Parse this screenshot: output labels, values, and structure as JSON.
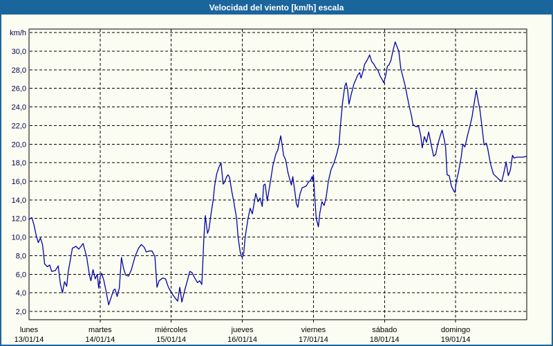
{
  "window": {
    "title": "Velocidad del viento [km/h] escala"
  },
  "colors": {
    "frame_border": "#1B659D",
    "titlebar_bg": "#1B659D",
    "title_text": "#FFFFFF",
    "background": "#FBFDF2",
    "series_line": "#0000A8",
    "grid": "#000000",
    "axis": "#000000",
    "y_label_text": "#00004E",
    "x_label_text": "#000000"
  },
  "chart_data": {
    "type": "line",
    "title": "Velocidad del viento [km/h] escala",
    "y_unit_label": "km/h",
    "ylim": [
      2,
      32
    ],
    "xlim_days": [
      0,
      7
    ],
    "grid": "dashed, horizontal every 2 km/h and vertical at day boundaries",
    "legend": "none",
    "y_ticks": [
      {
        "v": 30,
        "label": "30,0"
      },
      {
        "v": 28,
        "label": "28,0"
      },
      {
        "v": 26,
        "label": "26,0"
      },
      {
        "v": 24,
        "label": "24,0"
      },
      {
        "v": 22,
        "label": "22,0"
      },
      {
        "v": 20,
        "label": "20,0"
      },
      {
        "v": 18,
        "label": "18,0"
      },
      {
        "v": 16,
        "label": "16,0"
      },
      {
        "v": 14,
        "label": "14,0"
      },
      {
        "v": 12,
        "label": "12,0"
      },
      {
        "v": 10,
        "label": "10,0"
      },
      {
        "v": 8,
        "label": "8,0"
      },
      {
        "v": 6,
        "label": "6,0"
      },
      {
        "v": 4,
        "label": "4,0"
      },
      {
        "v": 2,
        "label": "2,0"
      }
    ],
    "x_days": [
      {
        "name": "lunes",
        "date": "13/01/14"
      },
      {
        "name": "martes",
        "date": "14/01/14"
      },
      {
        "name": "miércoles",
        "date": "15/01/14"
      },
      {
        "name": "jueves",
        "date": "16/01/14"
      },
      {
        "name": "viernes",
        "date": "17/01/14"
      },
      {
        "name": "sábado",
        "date": "18/01/14"
      },
      {
        "name": "domingo",
        "date": "19/01/14"
      }
    ],
    "series": [
      {
        "name": "velocidad del viento",
        "unit": "km/h",
        "color": "#0000A8",
        "points": [
          [
            0.0,
            11.9
          ],
          [
            0.04,
            12.1
          ],
          [
            0.07,
            11.3
          ],
          [
            0.1,
            10.2
          ],
          [
            0.13,
            9.4
          ],
          [
            0.16,
            9.9
          ],
          [
            0.19,
            9.2
          ],
          [
            0.22,
            7.1
          ],
          [
            0.26,
            6.8
          ],
          [
            0.29,
            7.0
          ],
          [
            0.32,
            6.3
          ],
          [
            0.37,
            6.4
          ],
          [
            0.41,
            6.9
          ],
          [
            0.44,
            5.0
          ],
          [
            0.47,
            4.0
          ],
          [
            0.5,
            5.2
          ],
          [
            0.53,
            4.7
          ],
          [
            0.55,
            6.2
          ],
          [
            0.61,
            8.8
          ],
          [
            0.66,
            9.0
          ],
          [
            0.7,
            8.7
          ],
          [
            0.76,
            9.3
          ],
          [
            0.81,
            7.9
          ],
          [
            0.85,
            5.9
          ],
          [
            0.87,
            5.3
          ],
          [
            0.9,
            6.5
          ],
          [
            0.93,
            5.5
          ],
          [
            0.96,
            6.0
          ],
          [
            0.98,
            4.5
          ],
          [
            1.0,
            5.7
          ],
          [
            1.02,
            6.1
          ],
          [
            1.05,
            5.4
          ],
          [
            1.08,
            4.3
          ],
          [
            1.12,
            2.7
          ],
          [
            1.15,
            3.4
          ],
          [
            1.19,
            4.3
          ],
          [
            1.21,
            4.4
          ],
          [
            1.24,
            3.6
          ],
          [
            1.27,
            4.5
          ],
          [
            1.3,
            7.8
          ],
          [
            1.33,
            6.6
          ],
          [
            1.36,
            5.9
          ],
          [
            1.4,
            5.8
          ],
          [
            1.44,
            6.5
          ],
          [
            1.49,
            7.9
          ],
          [
            1.54,
            8.8
          ],
          [
            1.58,
            9.2
          ],
          [
            1.62,
            8.9
          ],
          [
            1.65,
            8.4
          ],
          [
            1.69,
            8.5
          ],
          [
            1.73,
            8.5
          ],
          [
            1.77,
            7.9
          ],
          [
            1.8,
            4.6
          ],
          [
            1.83,
            5.3
          ],
          [
            1.88,
            5.6
          ],
          [
            1.92,
            5.5
          ],
          [
            1.96,
            4.6
          ],
          [
            1.99,
            4.2
          ],
          [
            2.02,
            3.8
          ],
          [
            2.06,
            3.4
          ],
          [
            2.09,
            3.1
          ],
          [
            2.12,
            4.6
          ],
          [
            2.15,
            3.0
          ],
          [
            2.19,
            4.3
          ],
          [
            2.23,
            5.4
          ],
          [
            2.26,
            6.3
          ],
          [
            2.29,
            6.2
          ],
          [
            2.33,
            5.6
          ],
          [
            2.37,
            5.1
          ],
          [
            2.4,
            5.3
          ],
          [
            2.43,
            4.9
          ],
          [
            2.44,
            6.5
          ],
          [
            2.46,
            10.0
          ],
          [
            2.48,
            12.3
          ],
          [
            2.51,
            10.4
          ],
          [
            2.53,
            10.8
          ],
          [
            2.56,
            12.5
          ],
          [
            2.59,
            14.0
          ],
          [
            2.61,
            15.5
          ],
          [
            2.64,
            16.8
          ],
          [
            2.67,
            17.5
          ],
          [
            2.7,
            18.0
          ],
          [
            2.73,
            15.7
          ],
          [
            2.75,
            15.9
          ],
          [
            2.78,
            16.5
          ],
          [
            2.8,
            16.7
          ],
          [
            2.82,
            16.4
          ],
          [
            2.85,
            15.0
          ],
          [
            2.88,
            13.8
          ],
          [
            2.92,
            12.0
          ],
          [
            2.94,
            10.0
          ],
          [
            2.97,
            8.4
          ],
          [
            2.99,
            7.9
          ],
          [
            3.0,
            7.8
          ],
          [
            3.02,
            8.3
          ],
          [
            3.04,
            10.0
          ],
          [
            3.08,
            12.0
          ],
          [
            3.11,
            13.1
          ],
          [
            3.14,
            12.5
          ],
          [
            3.19,
            14.7
          ],
          [
            3.22,
            13.8
          ],
          [
            3.25,
            14.2
          ],
          [
            3.28,
            13.3
          ],
          [
            3.3,
            15.6
          ],
          [
            3.32,
            15.7
          ],
          [
            3.35,
            13.9
          ],
          [
            3.4,
            16.2
          ],
          [
            3.43,
            17.7
          ],
          [
            3.47,
            18.9
          ],
          [
            3.5,
            19.4
          ],
          [
            3.54,
            20.9
          ],
          [
            3.56,
            19.9
          ],
          [
            3.58,
            18.8
          ],
          [
            3.61,
            18.3
          ],
          [
            3.64,
            17.0
          ],
          [
            3.66,
            16.4
          ],
          [
            3.69,
            15.6
          ],
          [
            3.71,
            16.5
          ],
          [
            3.74,
            14.8
          ],
          [
            3.76,
            13.6
          ],
          [
            3.78,
            13.2
          ],
          [
            3.81,
            14.6
          ],
          [
            3.84,
            15.3
          ],
          [
            3.87,
            15.4
          ],
          [
            3.9,
            15.5
          ],
          [
            3.93,
            15.9
          ],
          [
            3.96,
            16.1
          ],
          [
            3.98,
            16.5
          ],
          [
            3.99,
            16.1
          ],
          [
            4.0,
            16.7
          ],
          [
            4.02,
            14.1
          ],
          [
            4.04,
            12.0
          ],
          [
            4.07,
            11.1
          ],
          [
            4.09,
            12.6
          ],
          [
            4.12,
            13.8
          ],
          [
            4.15,
            13.4
          ],
          [
            4.18,
            14.3
          ],
          [
            4.21,
            16.0
          ],
          [
            4.25,
            17.3
          ],
          [
            4.29,
            18.0
          ],
          [
            4.33,
            19.0
          ],
          [
            4.36,
            20.0
          ],
          [
            4.38,
            22.0
          ],
          [
            4.41,
            24.5
          ],
          [
            4.44,
            26.2
          ],
          [
            4.46,
            26.6
          ],
          [
            4.48,
            25.9
          ],
          [
            4.5,
            24.3
          ],
          [
            4.53,
            25.3
          ],
          [
            4.57,
            26.5
          ],
          [
            4.6,
            27.0
          ],
          [
            4.62,
            27.4
          ],
          [
            4.65,
            27.7
          ],
          [
            4.67,
            27.1
          ],
          [
            4.7,
            27.9
          ],
          [
            4.72,
            28.6
          ],
          [
            4.76,
            29.1
          ],
          [
            4.79,
            29.6
          ],
          [
            4.82,
            28.9
          ],
          [
            4.85,
            28.6
          ],
          [
            4.88,
            28.2
          ],
          [
            4.91,
            27.9
          ],
          [
            4.94,
            27.3
          ],
          [
            4.97,
            26.9
          ],
          [
            4.99,
            26.6
          ],
          [
            5.02,
            27.5
          ],
          [
            5.04,
            28.4
          ],
          [
            5.06,
            28.5
          ],
          [
            5.09,
            29.0
          ],
          [
            5.12,
            30.1
          ],
          [
            5.15,
            31.0
          ],
          [
            5.18,
            30.4
          ],
          [
            5.2,
            30.0
          ],
          [
            5.23,
            28.1
          ],
          [
            5.26,
            27.2
          ],
          [
            5.29,
            26.3
          ],
          [
            5.32,
            25.1
          ],
          [
            5.35,
            24.0
          ],
          [
            5.38,
            23.0
          ],
          [
            5.4,
            22.1
          ],
          [
            5.44,
            21.9
          ],
          [
            5.48,
            21.9
          ],
          [
            5.51,
            20.9
          ],
          [
            5.53,
            19.6
          ],
          [
            5.56,
            20.8
          ],
          [
            5.59,
            20.2
          ],
          [
            5.62,
            21.3
          ],
          [
            5.66,
            19.8
          ],
          [
            5.69,
            18.7
          ],
          [
            5.72,
            18.9
          ],
          [
            5.75,
            20.0
          ],
          [
            5.78,
            20.8
          ],
          [
            5.81,
            21.5
          ],
          [
            5.84,
            20.5
          ],
          [
            5.86,
            19.6
          ],
          [
            5.88,
            16.7
          ],
          [
            5.91,
            16.6
          ],
          [
            5.94,
            15.5
          ],
          [
            5.97,
            15.0
          ],
          [
            5.99,
            14.8
          ],
          [
            6.01,
            16.0
          ],
          [
            6.04,
            17.0
          ],
          [
            6.08,
            18.7
          ],
          [
            6.1,
            20.0
          ],
          [
            6.13,
            19.7
          ],
          [
            6.17,
            21.0
          ],
          [
            6.2,
            21.9
          ],
          [
            6.23,
            22.9
          ],
          [
            6.25,
            23.9
          ],
          [
            6.29,
            25.8
          ],
          [
            6.32,
            24.5
          ],
          [
            6.34,
            23.8
          ],
          [
            6.37,
            21.9
          ],
          [
            6.4,
            19.9
          ],
          [
            6.43,
            20.1
          ],
          [
            6.45,
            19.6
          ],
          [
            6.49,
            17.9
          ],
          [
            6.53,
            16.8
          ],
          [
            6.57,
            16.5
          ],
          [
            6.61,
            16.2
          ],
          [
            6.65,
            16.0
          ],
          [
            6.68,
            17.0
          ],
          [
            6.71,
            18.1
          ],
          [
            6.74,
            16.6
          ],
          [
            6.77,
            17.2
          ],
          [
            6.8,
            18.8
          ],
          [
            6.82,
            18.5
          ],
          [
            6.86,
            18.6
          ],
          [
            6.9,
            18.6
          ],
          [
            6.95,
            18.6
          ],
          [
            7.0,
            18.7
          ]
        ]
      }
    ]
  }
}
